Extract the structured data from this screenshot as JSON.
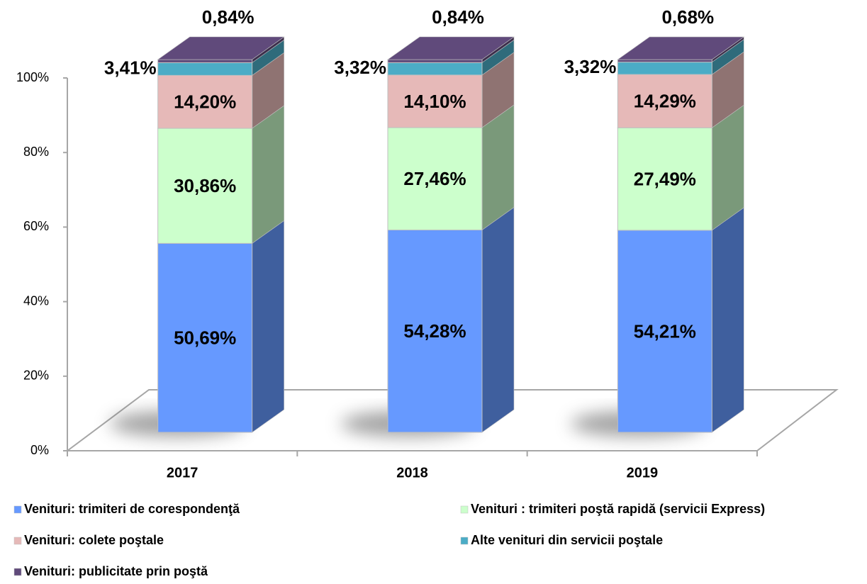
{
  "chart_data": {
    "type": "bar3d-stacked",
    "categories": [
      "2017",
      "2018",
      "2019"
    ],
    "series": [
      {
        "name": "Venituri: trimiteri de corespondenţă",
        "color": "#6699ff",
        "values": [
          50.69,
          54.28,
          54.21
        ],
        "value_labels": [
          "50,69%",
          "54,28%",
          "54,21%"
        ]
      },
      {
        "name": "Venituri : trimiteri poştă rapidă (servicii Express)",
        "color": "#ccffcc",
        "values": [
          30.86,
          27.46,
          27.49
        ],
        "value_labels": [
          "30,86%",
          "27,46%",
          "27,49%"
        ]
      },
      {
        "name": "Venituri: colete poştale",
        "color": "#e6b9b8",
        "values": [
          14.2,
          14.1,
          14.29
        ],
        "value_labels": [
          "14,20%",
          "14,10%",
          "14,29%"
        ]
      },
      {
        "name": "Alte venituri din servicii poştale",
        "color": "#4bacc6",
        "values": [
          3.41,
          3.32,
          3.32
        ],
        "value_labels": [
          "3,41%",
          "3,32%",
          "3,32%"
        ]
      },
      {
        "name": "Venituri: publicitate prin poştă",
        "color": "#604a7b",
        "values": [
          0.84,
          0.84,
          0.68
        ],
        "value_labels": [
          "0,84%",
          "0,84%",
          "0,68%"
        ]
      }
    ],
    "ylim": [
      0,
      100
    ],
    "yticks": [
      {
        "value": 0,
        "label": "0%"
      },
      {
        "value": 20,
        "label": "20%"
      },
      {
        "value": 40,
        "label": "40%"
      },
      {
        "value": 60,
        "label": "60%"
      },
      {
        "value": 80,
        "label": "80%"
      },
      {
        "value": 100,
        "label": "100%"
      }
    ],
    "legend": "bottom"
  }
}
